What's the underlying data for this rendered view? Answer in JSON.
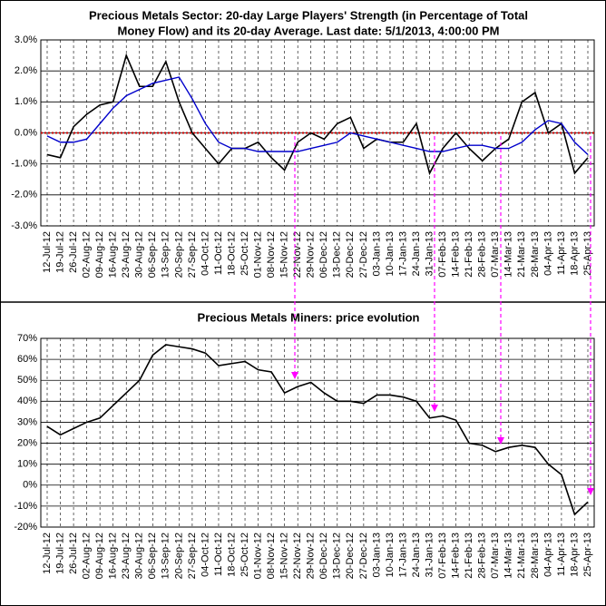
{
  "chart_data": [
    {
      "type": "line",
      "title": [
        "Precious Metals Sector: 20-day Large Players' Strength (in Percentage of Total",
        "Money Flow) and its 20-day Average. Last date: 5/1/2013, 4:00:00 PM"
      ],
      "categories": [
        "12-Jul-12",
        "19-Jul-12",
        "26-Jul-12",
        "02-Aug-12",
        "09-Aug-12",
        "16-Aug-12",
        "23-Aug-12",
        "30-Aug-12",
        "06-Sep-12",
        "13-Sep-12",
        "20-Sep-12",
        "27-Sep-12",
        "04-Oct-12",
        "11-Oct-12",
        "18-Oct-12",
        "25-Oct-12",
        "01-Nov-12",
        "08-Nov-12",
        "15-Nov-12",
        "22-Nov-12",
        "29-Nov-12",
        "06-Dec-12",
        "13-Dec-12",
        "20-Dec-12",
        "27-Dec-12",
        "03-Jan-13",
        "10-Jan-13",
        "17-Jan-13",
        "24-Jan-13",
        "31-Jan-13",
        "07-Feb-13",
        "14-Feb-13",
        "21-Feb-13",
        "28-Feb-13",
        "07-Mar-13",
        "14-Mar-13",
        "21-Mar-13",
        "28-Mar-13",
        "04-Apr-13",
        "11-Apr-13",
        "18-Apr-13",
        "25-Apr-13"
      ],
      "series": [
        {
          "color": "#000000",
          "values": [
            -0.7,
            -0.8,
            0.2,
            0.6,
            0.9,
            1.0,
            2.5,
            1.5,
            1.5,
            2.3,
            1.0,
            0.0,
            -0.5,
            -1.0,
            -0.5,
            -0.5,
            -0.3,
            -0.8,
            -1.2,
            -0.3,
            0.0,
            -0.2,
            0.3,
            0.5,
            -0.5,
            -0.2,
            -0.3,
            -0.3,
            0.3,
            -1.3,
            -0.5,
            0.0,
            -0.5,
            -0.9,
            -0.5,
            -0.2,
            1.0,
            1.3,
            0.0,
            0.3,
            -1.3,
            -0.8
          ]
        },
        {
          "color": "#0000cc",
          "values": [
            -0.1,
            -0.3,
            -0.3,
            -0.2,
            0.3,
            0.8,
            1.2,
            1.4,
            1.6,
            1.7,
            1.8,
            1.1,
            0.3,
            -0.3,
            -0.5,
            -0.5,
            -0.6,
            -0.6,
            -0.6,
            -0.6,
            -0.5,
            -0.4,
            -0.3,
            0.0,
            -0.1,
            -0.2,
            -0.3,
            -0.4,
            -0.5,
            -0.6,
            -0.6,
            -0.5,
            -0.4,
            -0.4,
            -0.5,
            -0.5,
            -0.3,
            0.1,
            0.4,
            0.3,
            -0.3,
            -0.7
          ]
        }
      ],
      "ylim": [
        -3,
        3
      ],
      "yticks": [
        {
          "value": 3,
          "label": "3.0%"
        },
        {
          "value": 2,
          "label": "2.0%"
        },
        {
          "value": 1,
          "label": "1.0%"
        },
        {
          "value": 0,
          "label": "0.0%"
        },
        {
          "value": -1,
          "label": "-1.0%"
        },
        {
          "value": -2,
          "label": "-2.0%"
        },
        {
          "value": -3,
          "label": "-3.0%"
        }
      ],
      "grid": true,
      "zero_line_color": "#cc0000"
    },
    {
      "type": "line",
      "title": [
        "Precious Metals Miners: price evolution"
      ],
      "categories": [
        "12-Jul-12",
        "19-Jul-12",
        "26-Jul-12",
        "02-Aug-12",
        "09-Aug-12",
        "16-Aug-12",
        "23-Aug-12",
        "30-Aug-12",
        "06-Sep-12",
        "13-Sep-12",
        "20-Sep-12",
        "27-Sep-12",
        "04-Oct-12",
        "11-Oct-12",
        "18-Oct-12",
        "25-Oct-12",
        "01-Nov-12",
        "08-Nov-12",
        "15-Nov-12",
        "22-Nov-12",
        "29-Nov-12",
        "06-Dec-12",
        "13-Dec-12",
        "20-Dec-12",
        "27-Dec-12",
        "03-Jan-13",
        "10-Jan-13",
        "17-Jan-13",
        "24-Jan-13",
        "31-Jan-13",
        "07-Feb-13",
        "14-Feb-13",
        "21-Feb-13",
        "28-Feb-13",
        "07-Mar-13",
        "14-Mar-13",
        "21-Mar-13",
        "28-Mar-13",
        "04-Apr-13",
        "11-Apr-13",
        "18-Apr-13",
        "25-Apr-13"
      ],
      "series": [
        {
          "color": "#000000",
          "values": [
            28,
            24,
            27,
            30,
            32,
            38,
            44,
            50,
            62,
            67,
            66,
            65,
            63,
            57,
            58,
            59,
            55,
            54,
            44,
            47,
            49,
            44,
            40,
            40,
            39,
            43,
            43,
            42,
            40,
            32,
            33,
            31,
            20,
            19,
            16,
            18,
            19,
            18,
            10,
            5,
            -14,
            -8
          ]
        }
      ],
      "ylim": [
        -20,
        70
      ],
      "yticks": [
        {
          "value": 70,
          "label": "70%"
        },
        {
          "value": 60,
          "label": "60%"
        },
        {
          "value": 50,
          "label": "50%"
        },
        {
          "value": 40,
          "label": "40%"
        },
        {
          "value": 30,
          "label": "30%"
        },
        {
          "value": 20,
          "label": "20%"
        },
        {
          "value": 10,
          "label": "10%"
        },
        {
          "value": 0,
          "label": "0%"
        },
        {
          "value": -10,
          "label": "-10%"
        },
        {
          "value": -20,
          "label": "-20%"
        }
      ],
      "grid": true
    }
  ]
}
